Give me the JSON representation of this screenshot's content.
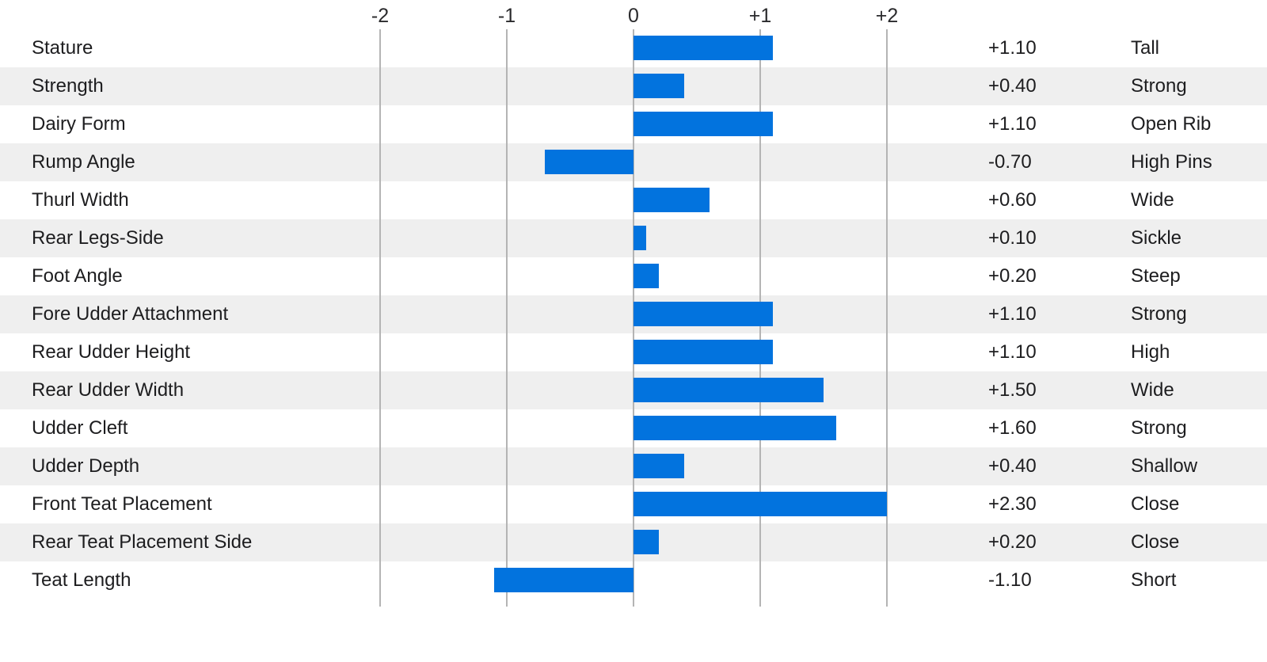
{
  "chart_data": {
    "type": "bar",
    "orientation": "horizontal",
    "title": "",
    "xlabel": "",
    "ylabel": "",
    "axis": {
      "min": -2,
      "max": 2,
      "tick_values": [
        -2,
        -1,
        0,
        1,
        2
      ],
      "tick_labels": [
        "-2",
        "-1",
        "0",
        "+1",
        "+2"
      ],
      "grid": true,
      "note": "bars are clamped to the -2..+2 axis range"
    },
    "colors": {
      "bar": "#0273de",
      "stripe": "#efefef",
      "gridline": "#b4b4b4",
      "text": "#1d1d1f"
    },
    "rows": [
      {
        "trait": "Stature",
        "value": 1.1,
        "value_label": "+1.10",
        "descriptor": "Tall"
      },
      {
        "trait": "Strength",
        "value": 0.4,
        "value_label": "+0.40",
        "descriptor": "Strong"
      },
      {
        "trait": "Dairy Form",
        "value": 1.1,
        "value_label": "+1.10",
        "descriptor": "Open Rib"
      },
      {
        "trait": "Rump Angle",
        "value": -0.7,
        "value_label": "-0.70",
        "descriptor": "High Pins"
      },
      {
        "trait": "Thurl Width",
        "value": 0.6,
        "value_label": "+0.60",
        "descriptor": "Wide"
      },
      {
        "trait": "Rear Legs-Side",
        "value": 0.1,
        "value_label": "+0.10",
        "descriptor": "Sickle"
      },
      {
        "trait": "Foot Angle",
        "value": 0.2,
        "value_label": "+0.20",
        "descriptor": "Steep"
      },
      {
        "trait": "Fore Udder Attachment",
        "value": 1.1,
        "value_label": "+1.10",
        "descriptor": "Strong"
      },
      {
        "trait": "Rear Udder Height",
        "value": 1.1,
        "value_label": "+1.10",
        "descriptor": "High"
      },
      {
        "trait": "Rear Udder Width",
        "value": 1.5,
        "value_label": "+1.50",
        "descriptor": "Wide"
      },
      {
        "trait": "Udder Cleft",
        "value": 1.6,
        "value_label": "+1.60",
        "descriptor": "Strong"
      },
      {
        "trait": "Udder Depth",
        "value": 0.4,
        "value_label": "+0.40",
        "descriptor": "Shallow"
      },
      {
        "trait": "Front Teat Placement",
        "value": 2.3,
        "value_label": "+2.30",
        "descriptor": "Close"
      },
      {
        "trait": "Rear Teat Placement Side",
        "value": 0.2,
        "value_label": "+0.20",
        "descriptor": "Close"
      },
      {
        "trait": "Teat Length",
        "value": -1.1,
        "value_label": "-1.10",
        "descriptor": "Short"
      }
    ]
  }
}
